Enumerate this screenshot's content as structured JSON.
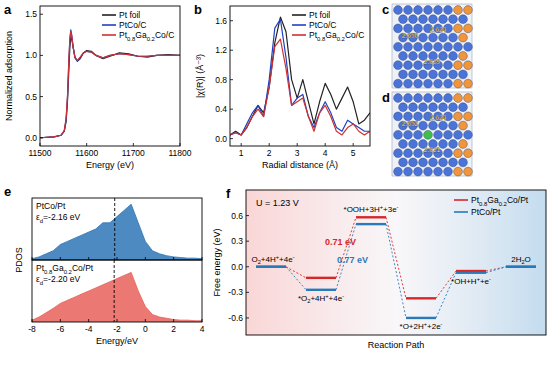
{
  "chart_data": [
    {
      "type": "line",
      "title": "a",
      "x_label": "Energy (eV)",
      "y_label": "Normalized adsorption",
      "x": [
        11500,
        11530,
        11545,
        11552,
        11556,
        11559,
        11562,
        11564,
        11566,
        11568,
        11571,
        11575,
        11580,
        11586,
        11593,
        11600,
        11610,
        11620,
        11635,
        11650,
        11670,
        11690,
        11710,
        11730,
        11750,
        11775,
        11800
      ],
      "series": [
        {
          "name": "Pt foil",
          "color": "#222222",
          "values": [
            0.0,
            0.01,
            0.03,
            0.08,
            0.2,
            0.45,
            0.85,
            1.1,
            1.22,
            1.2,
            1.1,
            0.98,
            0.93,
            0.96,
            1.03,
            1.06,
            1.05,
            1.0,
            0.96,
            0.99,
            1.03,
            1.02,
            0.99,
            0.98,
            1.0,
            1.01,
            1.0
          ]
        },
        {
          "name": "PtCo/C",
          "color": "#2040c0",
          "values": [
            0.0,
            0.01,
            0.03,
            0.08,
            0.22,
            0.5,
            0.95,
            1.2,
            1.31,
            1.25,
            1.1,
            0.97,
            0.93,
            0.97,
            1.03,
            1.05,
            1.04,
            1.0,
            0.97,
            1.0,
            1.02,
            1.01,
            0.99,
            0.99,
            1.0,
            1.0,
            1.0
          ]
        },
        {
          "name": "Pt0.8Ga0.2Co/C",
          "color": "#d03030",
          "values": [
            0.0,
            0.01,
            0.03,
            0.09,
            0.24,
            0.52,
            0.97,
            1.2,
            1.29,
            1.24,
            1.1,
            0.97,
            0.94,
            0.98,
            1.03,
            1.05,
            1.04,
            1.0,
            0.97,
            1.0,
            1.02,
            1.01,
            0.99,
            0.99,
            1.0,
            1.0,
            1.0
          ]
        }
      ],
      "xlim": [
        11500,
        11800
      ],
      "xticks": [
        11500,
        11600,
        11700,
        11800
      ],
      "ylim": [
        -0.1,
        1.6
      ],
      "yticks": [
        {
          "value": 0,
          "label": "0.0"
        },
        {
          "value": 0.5,
          "label": "0.5"
        },
        {
          "value": 1,
          "label": "1.0"
        },
        {
          "value": 1.5,
          "label": "1.5"
        }
      ],
      "legend": "top-right",
      "grid": false
    },
    {
      "type": "line",
      "title": "b",
      "x_label": "Radial distance (Å)",
      "y_label": "|χ(R)| (Å⁻³)",
      "x": [
        0.6,
        0.8,
        1.0,
        1.2,
        1.4,
        1.6,
        1.8,
        2.0,
        2.2,
        2.4,
        2.6,
        2.8,
        3.0,
        3.2,
        3.4,
        3.6,
        3.8,
        4.0,
        4.2,
        4.4,
        4.6,
        4.8,
        5.0,
        5.2,
        5.4,
        5.6
      ],
      "series": [
        {
          "name": "Pt foil",
          "color": "#222222",
          "values": [
            0.05,
            0.1,
            0.05,
            0.15,
            0.3,
            0.45,
            0.35,
            0.7,
            1.3,
            1.65,
            1.45,
            0.8,
            0.55,
            0.8,
            0.5,
            0.2,
            0.5,
            0.75,
            0.6,
            0.4,
            0.55,
            0.7,
            0.5,
            0.2,
            0.25,
            0.35
          ]
        },
        {
          "name": "PtCo/C",
          "color": "#2040c0",
          "values": [
            0.05,
            0.08,
            0.05,
            0.2,
            0.35,
            0.45,
            0.3,
            0.8,
            1.5,
            1.62,
            1.1,
            0.45,
            0.55,
            0.6,
            0.3,
            0.15,
            0.35,
            0.5,
            0.35,
            0.15,
            0.1,
            0.25,
            0.2,
            0.15,
            0.1,
            0.1
          ]
        },
        {
          "name": "Pt0.8Ga0.2Co/C",
          "color": "#d03030",
          "values": [
            0.05,
            0.08,
            0.05,
            0.15,
            0.3,
            0.4,
            0.3,
            0.7,
            1.25,
            1.35,
            0.95,
            0.45,
            0.5,
            0.55,
            0.3,
            0.1,
            0.35,
            0.45,
            0.3,
            0.1,
            0.05,
            0.15,
            0.2,
            0.1,
            0.05,
            0.1
          ]
        }
      ],
      "xlim": [
        0.6,
        5.6
      ],
      "xticks": [
        1,
        2,
        3,
        4,
        5
      ],
      "ylim": [
        -0.1,
        1.8
      ],
      "yticks": [
        {
          "value": 0,
          "label": "0.0"
        },
        {
          "value": 0.4,
          "label": "0.4"
        },
        {
          "value": 0.8,
          "label": "0.8"
        },
        {
          "value": 1.2,
          "label": "1.2"
        },
        {
          "value": 1.6,
          "label": "1.6"
        }
      ],
      "legend": "top-right",
      "grid": false
    },
    {
      "type": "area",
      "title": "e",
      "y_label": "PDOS",
      "x": [
        -8,
        -7.5,
        -7,
        -6.5,
        -6,
        -5.5,
        -5,
        -4.5,
        -4,
        -3.5,
        -3,
        -2.5,
        -2,
        -1.5,
        -1,
        -0.5,
        0,
        0.5,
        1,
        1.5,
        2,
        2.5,
        3,
        3.5,
        4
      ],
      "series": [
        {
          "name": "PtCo/Pt",
          "color": "#2e75b6",
          "values": [
            0.2,
            0.5,
            1,
            1.5,
            2.5,
            3,
            3.5,
            4,
            4.5,
            5,
            6,
            6,
            7,
            8,
            9,
            6,
            3,
            1.5,
            1,
            0.7,
            0.5,
            0.4,
            0.3,
            0.3,
            0.2
          ]
        }
      ],
      "annotation": "εd=-2.16 eV",
      "d_band_center": -2.16,
      "xlim": [
        -8,
        4
      ],
      "xticks": [
        -8,
        -6,
        -4,
        -2,
        0,
        2,
        4
      ],
      "ylim": [
        0,
        10
      ],
      "tick_labels": false
    },
    {
      "type": "area",
      "x_label": "Energy/eV",
      "x": [
        -8,
        -7.5,
        -7,
        -6.5,
        -6,
        -5.5,
        -5,
        -4.5,
        -4,
        -3.5,
        -3,
        -2.5,
        -2,
        -1.5,
        -1,
        -0.5,
        0,
        0.5,
        1,
        1.5,
        2,
        2.5,
        3,
        3.5,
        4
      ],
      "series": [
        {
          "name": "Pt0.8Ga0.2Co/Pt",
          "color": "#e8605a",
          "values": [
            0.3,
            0.8,
            1.5,
            2.2,
            3,
            3.5,
            4,
            4.5,
            5,
            5.5,
            6,
            6.5,
            7,
            7.5,
            8,
            5,
            2.5,
            1.2,
            0.8,
            0.6,
            0.4,
            0.3,
            0.3,
            0.2,
            0.2
          ]
        }
      ],
      "annotation": "εd=-2.20 eV",
      "d_band_center": -2.2,
      "xlim": [
        -8,
        4
      ],
      "xticks": [
        -8,
        -6,
        -4,
        -2,
        0,
        2,
        4
      ],
      "ylim": [
        0,
        10
      ],
      "tick_labels": "x"
    },
    {
      "type": "step",
      "title": "f",
      "x_label": "Reaction Path",
      "y_label": "Free energy (eV)",
      "categories": [
        "O2+4H++4e-",
        "*O2+4H++4e-",
        "*OOH+3H++3e-",
        "*O+2H++2e-",
        "*OH+H++e-",
        "2H2O"
      ],
      "series": [
        {
          "name": "Pt0.8Ga0.2Co/Pt",
          "color": "#d62728",
          "values": [
            0,
            -0.13,
            0.58,
            -0.37,
            -0.05,
            0
          ]
        },
        {
          "name": "PtCo/Pt",
          "color": "#2a7ab9",
          "values": [
            0,
            -0.27,
            0.5,
            -0.6,
            -0.07,
            0
          ]
        }
      ],
      "annotations": [
        {
          "text": "U = 1.23 V"
        },
        {
          "text": "0.71 eV",
          "color": "#d62728"
        },
        {
          "text": "0.77 eV",
          "color": "#2a7ab9"
        }
      ],
      "ylim": [
        -0.8,
        0.9
      ],
      "yticks": [
        -0.6,
        -0.3,
        {
          "value": 0,
          "label": "0.0"
        },
        0.3,
        0.6
      ],
      "legend": "top-right",
      "grid": false
    }
  ],
  "structures": [
    {
      "label": "c",
      "bond_lengths": [
        "2.650",
        "2.624",
        "2.639"
      ]
    },
    {
      "label": "d",
      "bond_lengths": [
        "2.652",
        "2.624",
        "2.621"
      ]
    }
  ]
}
